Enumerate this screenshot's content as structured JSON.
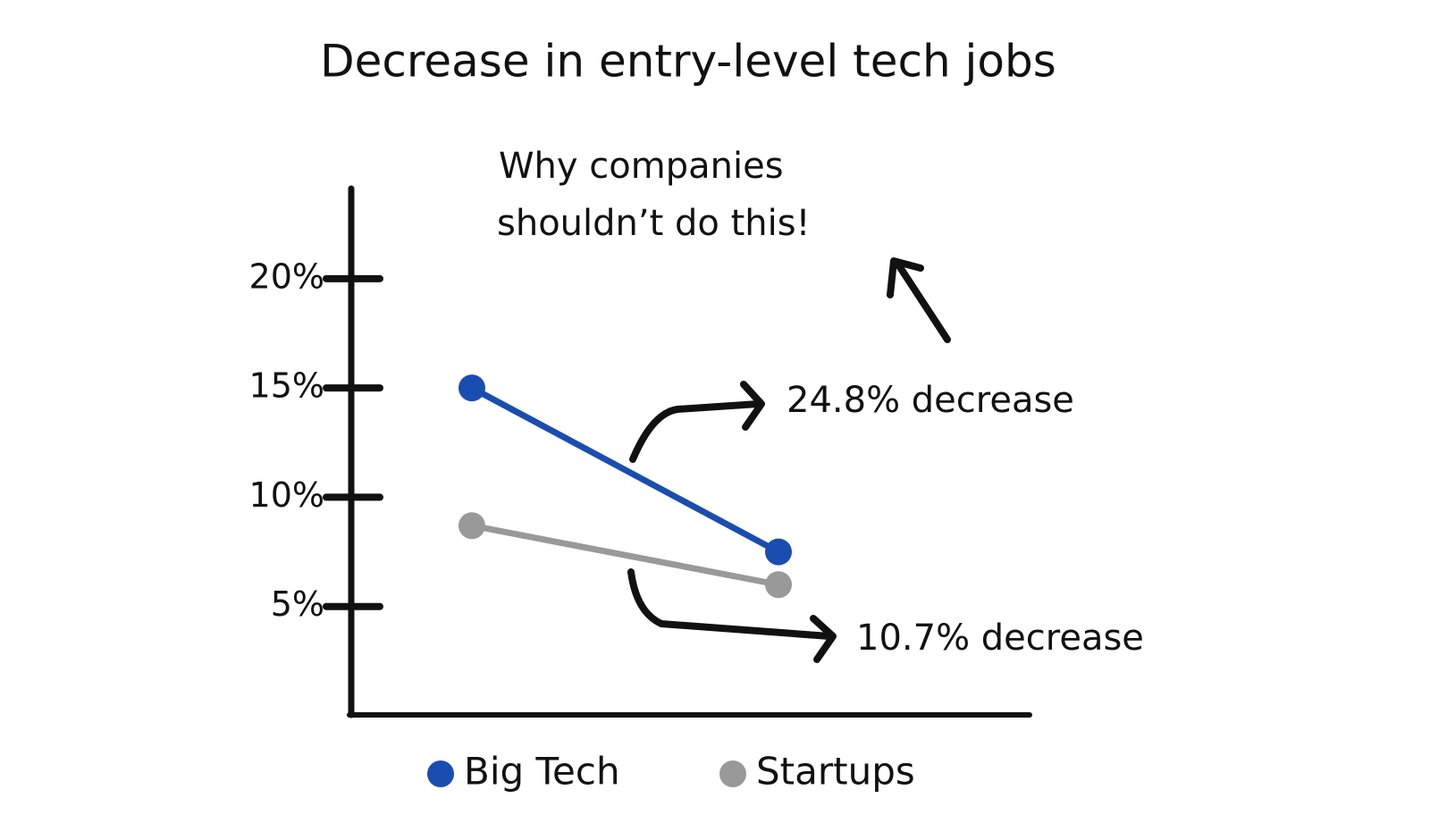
{
  "chart_data": {
    "type": "line",
    "title": "Decrease in entry-level tech jobs",
    "note": [
      "Why companies",
      "shouldn’t do this!"
    ],
    "annotations": [
      "24.8% decrease",
      "10.7% decrease"
    ],
    "categories": [
      null,
      null
    ],
    "series": [
      {
        "name": "Big Tech",
        "color": "#1a4db0",
        "values": [
          15,
          7.5
        ]
      },
      {
        "name": "Startups",
        "color": "#999999",
        "values": [
          8.7,
          6.0
        ]
      }
    ],
    "ylim": [
      0,
      24
    ],
    "yticks": [
      {
        "value": 5,
        "label": "5%"
      },
      {
        "value": 10,
        "label": "10%"
      },
      {
        "value": 15,
        "label": "15%"
      },
      {
        "value": 20,
        "label": "20%"
      }
    ],
    "grid": false,
    "legend": "bottom"
  }
}
